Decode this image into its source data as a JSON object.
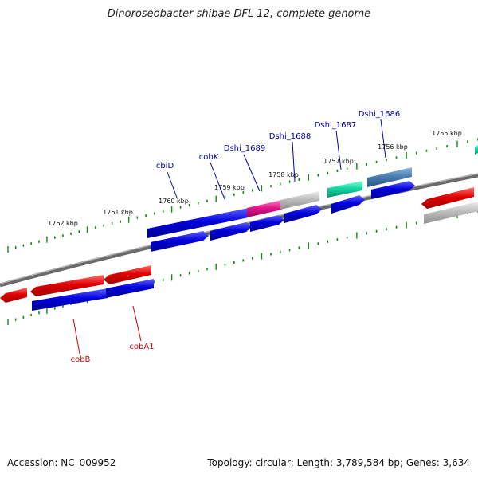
{
  "title": "Dinoroseobacter shibae DFL 12, complete genome",
  "footer": {
    "accession": "Accession: NC_009952",
    "summary": "Topology: circular; Length: 3,789,584 bp; Genes: 3,634"
  },
  "kbp_labels": [
    "1762 kbp",
    "1761 kbp",
    "1760 kbp",
    "1759 kbp",
    "1758 kbp",
    "1757 kbp",
    "1756 kbp",
    "1755 kbp"
  ],
  "gene_labels": [
    {
      "name": "cbiD",
      "color": "#0000aa"
    },
    {
      "name": "cobK",
      "color": "#0000aa"
    },
    {
      "name": "Dshi_1689",
      "color": "#0000aa"
    },
    {
      "name": "Dshi_1688",
      "color": "#0000aa"
    },
    {
      "name": "Dshi_1687",
      "color": "#0000aa"
    },
    {
      "name": "Dshi_1686",
      "color": "#0000aa"
    },
    {
      "name": "cobB",
      "color": "#cc0000"
    },
    {
      "name": "cobA1",
      "color": "#cc0000"
    }
  ],
  "colors": {
    "blue": "#0000cc",
    "red": "#e01010",
    "grey": "#b8b8b8",
    "pink": "#e0208a",
    "teal": "#10d8a0",
    "steel": "#4a7fb0",
    "tick": "#138a13",
    "backbone": "#888888"
  }
}
